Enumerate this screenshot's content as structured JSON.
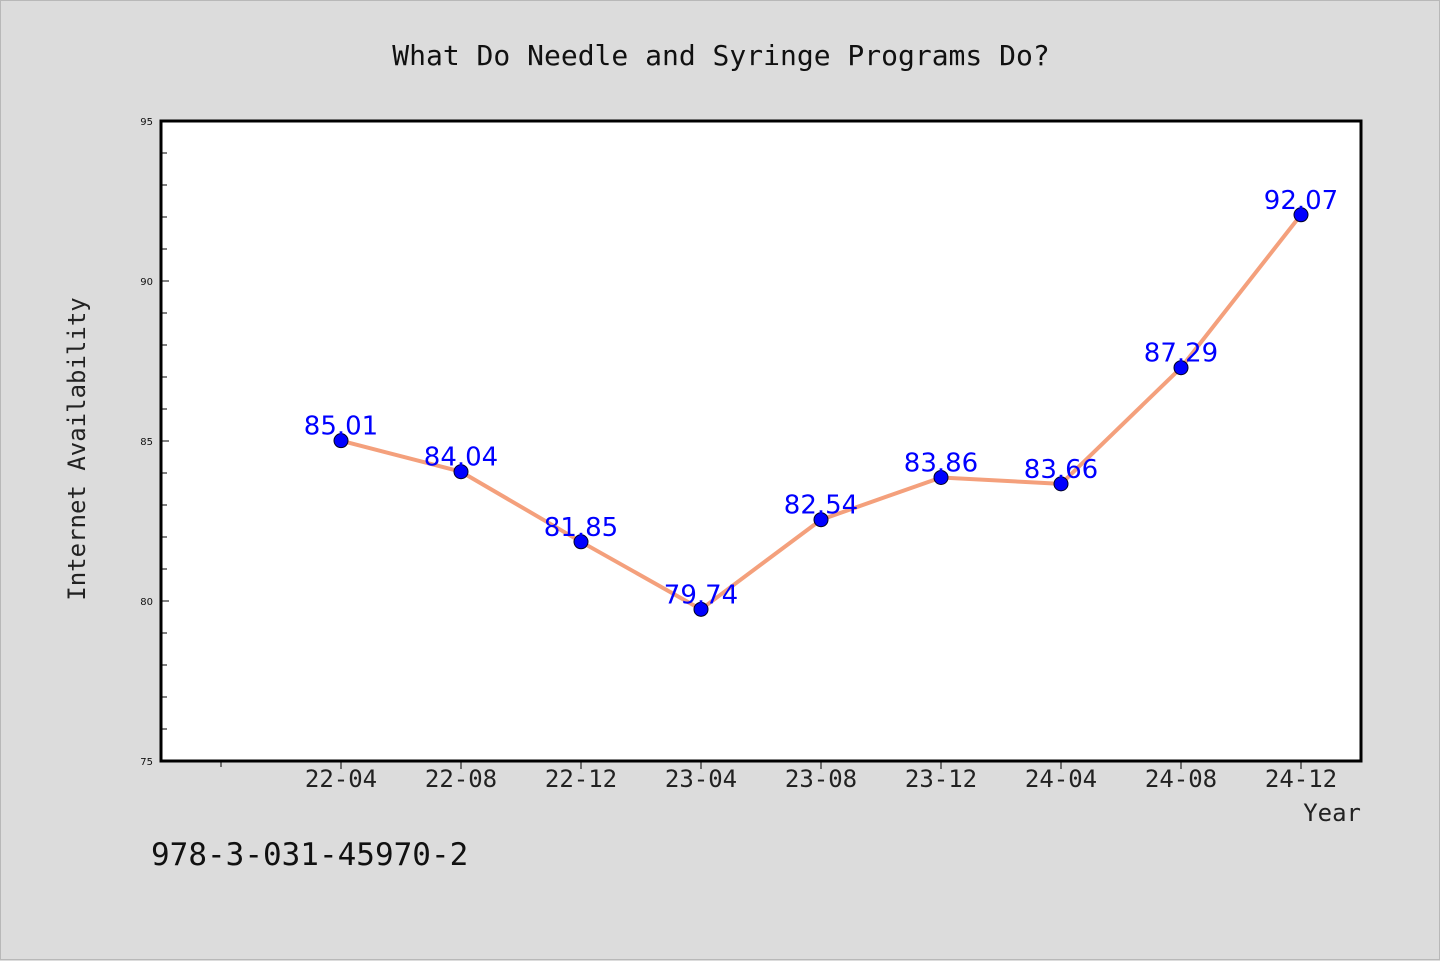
{
  "chart_data": {
    "type": "line",
    "title": "What Do Needle and Syringe Programs Do?",
    "xlabel": "Year",
    "ylabel": "Internet Availability",
    "categories": [
      "22-04",
      "22-08",
      "22-12",
      "23-04",
      "23-08",
      "23-12",
      "24-04",
      "24-08",
      "24-12"
    ],
    "series": [
      {
        "values": [
          85.01,
          84.04,
          81.85,
          79.74,
          82.54,
          83.86,
          83.66,
          87.29,
          92.07
        ],
        "labels": [
          "85.01",
          "84.04",
          "81.85",
          "79.74",
          "82.54",
          "83.86",
          "83.66",
          "87.29",
          "92.07"
        ],
        "line_color": "#f4a07c",
        "marker_color": "#0000ff"
      }
    ],
    "ylim": [
      75,
      95
    ],
    "yticks": [
      "75",
      "80",
      "85",
      "90",
      "95"
    ],
    "grid": false,
    "legend": "none"
  },
  "footnote": "978-3-031-45970-2"
}
